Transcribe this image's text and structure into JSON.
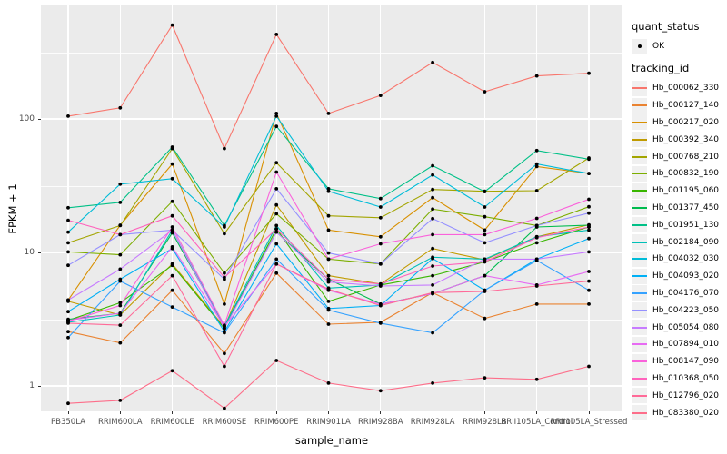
{
  "chart_data": {
    "type": "line",
    "title": "",
    "xlabel": "sample_name",
    "ylabel": "FPKM + 1",
    "y_scale": "log10",
    "y_ticks": [
      1,
      10,
      100
    ],
    "y_minor_gridlines": [
      3.162,
      31.62,
      316.2
    ],
    "ylim": [
      0.65,
      700
    ],
    "grid": "on",
    "legend_position": "right",
    "x_categories": [
      "PB350LA",
      "RRIM600LA",
      "RRIM600LE",
      "RRIM600SE",
      "RRIM600PE",
      "RRIM901LA",
      "RRIM928BA",
      "RRIM928LA",
      "RRIM928LB",
      "RRII105LA_Control",
      "RRII105LA_Stressed"
    ],
    "legend": {
      "quant_status": {
        "title": "quant_status",
        "items": [
          "OK"
        ]
      },
      "tracking_id": {
        "title": "tracking_id"
      }
    },
    "series": [
      {
        "tracking_id": "Hb_000062_330",
        "quant_status": "OK",
        "color": "#F8766D",
        "values": [
          105,
          121,
          505,
          60,
          430,
          110,
          150,
          265,
          160,
          210,
          220
        ]
      },
      {
        "tracking_id": "Hb_000127_140",
        "quant_status": "OK",
        "color": "#EA8331",
        "values": [
          2.55,
          2.1,
          5.2,
          1.75,
          7.0,
          2.9,
          3.0,
          5.0,
          3.2,
          4.1,
          4.1
        ]
      },
      {
        "tracking_id": "Hb_000217_020",
        "quant_status": "OK",
        "color": "#D89000",
        "values": [
          4.4,
          16,
          46,
          4.1,
          110,
          14.7,
          13.1,
          25.7,
          14.7,
          44,
          39
        ]
      },
      {
        "tracking_id": "Hb_000392_340",
        "quant_status": "OK",
        "color": "#C09B00",
        "values": [
          4.3,
          3.4,
          8.2,
          2.75,
          22.7,
          6.7,
          5.8,
          10.7,
          8.8,
          13.1,
          16.1
        ]
      },
      {
        "tracking_id": "Hb_000768_210",
        "quant_status": "OK",
        "color": "#A3A500",
        "values": [
          11.8,
          15.9,
          60,
          13.8,
          47,
          18.8,
          18.2,
          29.6,
          28.7,
          29,
          51
        ]
      },
      {
        "tracking_id": "Hb_000832_190",
        "quant_status": "OK",
        "color": "#7CAE00",
        "values": [
          10.1,
          9.6,
          24.1,
          7.0,
          19.5,
          8.9,
          8.2,
          21.1,
          18.5,
          15.9,
          22
        ]
      },
      {
        "tracking_id": "Hb_001195_060",
        "quant_status": "OK",
        "color": "#39B600",
        "values": [
          3.1,
          4.2,
          8.0,
          2.7,
          15.0,
          4.3,
          5.7,
          6.7,
          8.5,
          11.8,
          15.5
        ]
      },
      {
        "tracking_id": "Hb_001377_450",
        "quant_status": "OK",
        "color": "#00BB4E",
        "values": [
          3.15,
          3.5,
          14.0,
          2.8,
          14.2,
          6.3,
          4.1,
          4.9,
          6.7,
          15.5,
          16.0
        ]
      },
      {
        "tracking_id": "Hb_001951_130",
        "quant_status": "OK",
        "color": "#00C087",
        "values": [
          21.6,
          23.7,
          61.5,
          15.9,
          88,
          30,
          25.3,
          44.6,
          28.5,
          58,
          50
        ]
      },
      {
        "tracking_id": "Hb_002184_090",
        "quant_status": "OK",
        "color": "#00C0B8",
        "values": [
          3.0,
          3.4,
          14.7,
          2.8,
          15.9,
          5.4,
          5.7,
          9.2,
          8.9,
          13.1,
          14.7
        ]
      },
      {
        "tracking_id": "Hb_004032_030",
        "quant_status": "OK",
        "color": "#00BCD8",
        "values": [
          14.2,
          32.5,
          35.7,
          15.5,
          105,
          28.7,
          21.9,
          38.1,
          21.9,
          46,
          39
        ]
      },
      {
        "tracking_id": "Hb_004093_020",
        "quant_status": "OK",
        "color": "#00B0F6",
        "values": [
          3.6,
          6.3,
          10.7,
          2.55,
          11.6,
          3.8,
          4.0,
          9.0,
          5.2,
          8.9,
          12.7
        ]
      },
      {
        "tracking_id": "Hb_004176_070",
        "quant_status": "OK",
        "color": "#35A2FF",
        "values": [
          2.3,
          6.1,
          3.9,
          2.5,
          8.9,
          3.7,
          2.95,
          2.5,
          5.2,
          8.7,
          5.2
        ]
      },
      {
        "tracking_id": "Hb_004223_050",
        "quant_status": "OK",
        "color": "#9590FF",
        "values": [
          8.0,
          13.6,
          14.7,
          6.3,
          30,
          9.9,
          8.2,
          17.9,
          11.8,
          15.9,
          19.7
        ]
      },
      {
        "tracking_id": "Hb_005054_080",
        "quant_status": "OK",
        "color": "#C77CFF",
        "values": [
          4.4,
          7.5,
          14.7,
          2.7,
          14.2,
          6.0,
          5.6,
          5.7,
          8.9,
          8.9,
          10.1
        ]
      },
      {
        "tracking_id": "Hb_007894_010",
        "quant_status": "OK",
        "color": "#E76BF3",
        "values": [
          3.1,
          3.5,
          11.0,
          2.8,
          8.2,
          5.2,
          4.1,
          4.9,
          6.7,
          5.7,
          7.2
        ]
      },
      {
        "tracking_id": "Hb_008147_090",
        "quant_status": "OK",
        "color": "#FA62DB",
        "values": [
          3.05,
          4.0,
          15.5,
          2.85,
          40,
          8.9,
          11.6,
          13.6,
          13.6,
          18,
          25
        ]
      },
      {
        "tracking_id": "Hb_010368_050",
        "quant_status": "OK",
        "color": "#FF62BC",
        "values": [
          17.4,
          13.6,
          18.8,
          6.5,
          15.0,
          6.3,
          5.8,
          7.9,
          8.5,
          12.9,
          15.5
        ]
      },
      {
        "tracking_id": "Hb_012796_020",
        "quant_status": "OK",
        "color": "#FF6A98",
        "values": [
          2.95,
          2.85,
          6.7,
          1.4,
          8.2,
          5.3,
          4.0,
          5.0,
          5.1,
          5.6,
          6.1
        ]
      },
      {
        "tracking_id": "Hb_083380_020",
        "quant_status": "OK",
        "color": "#FD6E8A",
        "values": [
          0.74,
          0.78,
          1.3,
          0.68,
          1.55,
          1.05,
          0.92,
          1.05,
          1.15,
          1.12,
          1.4
        ]
      }
    ]
  },
  "style": {
    "panel_bg": "#EBEBEB",
    "grid_color": "#FFFFFF",
    "tick_label_color": "#4D4D4D",
    "point_color": "#000000",
    "legend_key_bg": "#F0F0F0"
  }
}
